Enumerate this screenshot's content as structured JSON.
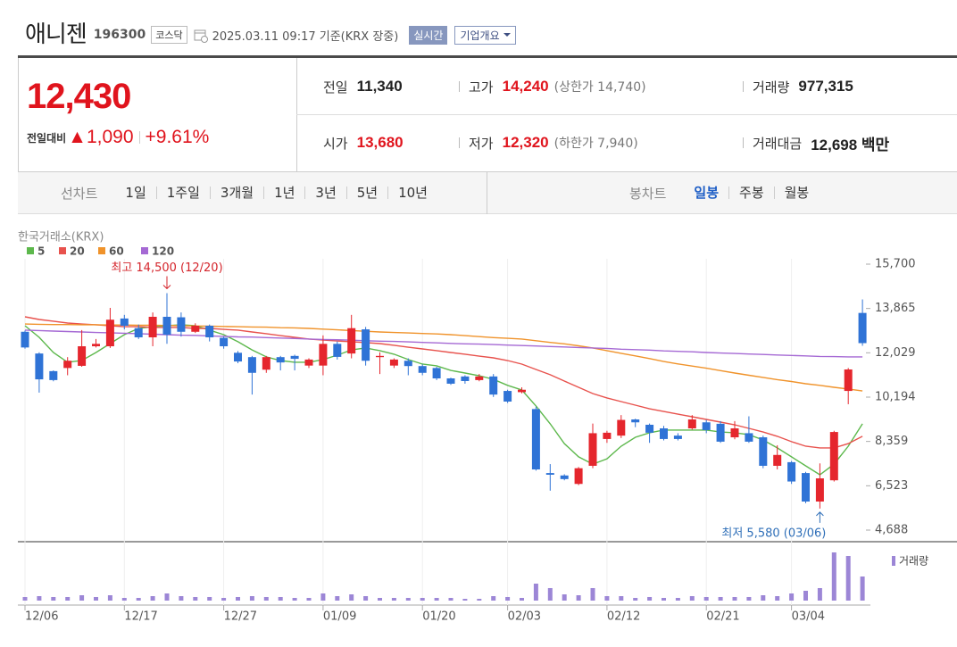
{
  "header": {
    "name": "애니젠",
    "code": "196300",
    "market": "코스닥",
    "timestamp": "2025.03.11 09:17 기준(KRX 장중)",
    "realtime": "실시간",
    "company_info": "기업개요"
  },
  "quote": {
    "price": "12,430",
    "change_label": "전일대비",
    "change": "▲1,090",
    "change_rate": "+9.61%",
    "stats": [
      {
        "label": "전일",
        "value": "11,340"
      },
      {
        "label": "고가",
        "value": "14,240",
        "note": "(상한가 14,740)"
      },
      {
        "label": "거래량",
        "value": "977,315"
      },
      {
        "label": "시가",
        "value": "13,680"
      },
      {
        "label": "저가",
        "value": "12,320",
        "note": "(하한가 7,940)"
      },
      {
        "label": "거래대금",
        "value": "12,698 백만"
      }
    ]
  },
  "periods": {
    "line_label": "선차트",
    "line_items": [
      "1일",
      "1주일",
      "3개월",
      "1년",
      "3년",
      "5년",
      "10년"
    ],
    "candle_label": "봉차트",
    "candle_items": [
      "일봉",
      "주봉",
      "월봉"
    ]
  },
  "chart_data": {
    "type": "candlestick",
    "source": "한국거래소(KRX)",
    "categories": [
      "12/06",
      null,
      null,
      null,
      null,
      null,
      null,
      "12/17",
      null,
      null,
      null,
      null,
      null,
      null,
      "12/27",
      null,
      null,
      null,
      null,
      null,
      null,
      "01/09",
      null,
      null,
      null,
      null,
      null,
      null,
      "01/20",
      null,
      null,
      null,
      null,
      null,
      "02/03",
      null,
      null,
      null,
      null,
      null,
      null,
      "02/12",
      null,
      null,
      null,
      null,
      null,
      null,
      "02/21",
      null,
      null,
      null,
      null,
      null,
      "03/04",
      null,
      null,
      null,
      null,
      null
    ],
    "open": [
      12900,
      12000,
      11270,
      11400,
      11490,
      12300,
      12300,
      13450,
      13050,
      12670,
      13520,
      13500,
      12900,
      13150,
      12650,
      12030,
      11850,
      11330,
      11850,
      11900,
      11500,
      11500,
      12400,
      12000,
      13000,
      11850,
      11500,
      11700,
      11480,
      11400,
      10970,
      11050,
      10900,
      11050,
      10450,
      10400,
      9700,
      7050,
      6950,
      6600,
      7350,
      8460,
      8600,
      9270,
      9050,
      8900,
      8600,
      8900,
      9150,
      9090,
      8530,
      8700,
      8530,
      7350,
      7500,
      7050,
      5870,
      6750,
      10450,
      13680
    ],
    "high": [
      12950,
      12050,
      11300,
      11850,
      12970,
      12600,
      13890,
      13600,
      13200,
      13700,
      14500,
      13700,
      13250,
      13200,
      12700,
      12100,
      11900,
      11900,
      11900,
      11950,
      11800,
      12750,
      12500,
      13600,
      13100,
      12050,
      11800,
      11800,
      11550,
      11450,
      11000,
      11100,
      11150,
      11150,
      10500,
      10600,
      9800,
      7420,
      7000,
      7300,
      9100,
      8800,
      9450,
      9300,
      9100,
      9000,
      8700,
      9450,
      9250,
      9200,
      9200,
      9400,
      8600,
      8200,
      7550,
      7100,
      7450,
      8800,
      11400,
      14240
    ],
    "low": [
      12200,
      10380,
      10850,
      11100,
      11450,
      12250,
      12230,
      13000,
      12600,
      12300,
      12400,
      12700,
      12850,
      12500,
      12200,
      11600,
      10300,
      11200,
      11300,
      11300,
      11400,
      11100,
      11750,
      11800,
      11500,
      11150,
      11400,
      11100,
      11100,
      10900,
      10700,
      10750,
      10850,
      10200,
      9950,
      10350,
      7150,
      6320,
      6750,
      6550,
      7250,
      8300,
      8500,
      8950,
      8300,
      8400,
      8400,
      8850,
      8700,
      8300,
      8450,
      8300,
      7250,
      7200,
      6600,
      5800,
      5580,
      6700,
      9900,
      12320
    ],
    "close": [
      12250,
      10930,
      10900,
      11700,
      12300,
      12400,
      13400,
      13150,
      12670,
      13520,
      12780,
      12900,
      13150,
      12670,
      12300,
      11670,
      11200,
      11850,
      11630,
      11780,
      11750,
      12400,
      11860,
      13050,
      11700,
      11900,
      11750,
      11480,
      11200,
      10970,
      10750,
      10860,
      11050,
      10300,
      10010,
      10500,
      7200,
      6980,
      6800,
      7250,
      8700,
      8720,
      9250,
      9150,
      8720,
      8460,
      8460,
      9270,
      8830,
      8350,
      8900,
      8350,
      7350,
      7800,
      6700,
      5870,
      6830,
      8750,
      11340,
      12430
    ],
    "up_color": "#e5262d",
    "down_color": "#2f73d6",
    "series": [
      {
        "name": "5",
        "color": "#5db84c",
        "values": [
          13150,
          12670,
          12040,
          11640,
          11710,
          12040,
          12410,
          12780,
          13040,
          13110,
          13150,
          13190,
          13150,
          12970,
          12780,
          12490,
          12150,
          11860,
          11710,
          11640,
          11640,
          11750,
          11930,
          12150,
          12230,
          12120,
          11970,
          11750,
          11560,
          11490,
          11300,
          11190,
          11080,
          10930,
          10680,
          10490,
          9830,
          9090,
          8270,
          7720,
          7420,
          7640,
          8160,
          8530,
          8720,
          8830,
          8830,
          8830,
          8830,
          8750,
          8720,
          8640,
          8420,
          8090,
          7720,
          7350,
          6980,
          7420,
          8160,
          9090
        ]
      },
      {
        "name": "20",
        "color": "#e8524d",
        "values": [
          13520,
          13410,
          13340,
          13260,
          13220,
          13190,
          13150,
          13110,
          13110,
          13080,
          13080,
          13080,
          13040,
          13040,
          13000,
          12970,
          12890,
          12820,
          12740,
          12670,
          12600,
          12560,
          12520,
          12490,
          12450,
          12410,
          12340,
          12260,
          12190,
          12120,
          12040,
          11970,
          11890,
          11820,
          11710,
          11560,
          11340,
          11120,
          10860,
          10600,
          10340,
          10160,
          10010,
          9860,
          9710,
          9600,
          9490,
          9380,
          9270,
          9160,
          9050,
          8900,
          8750,
          8570,
          8350,
          8160,
          8090,
          8090,
          8270,
          8570
        ]
      },
      {
        "name": "60",
        "color": "#f0932b",
        "values": [
          13220,
          13210,
          13200,
          13200,
          13190,
          13190,
          13180,
          13180,
          13170,
          13170,
          13160,
          13150,
          13140,
          13130,
          13120,
          13110,
          13100,
          13090,
          13070,
          13060,
          13040,
          13010,
          12980,
          12950,
          12920,
          12890,
          12870,
          12850,
          12830,
          12810,
          12780,
          12740,
          12700,
          12660,
          12630,
          12600,
          12530,
          12460,
          12400,
          12320,
          12230,
          12120,
          12010,
          11900,
          11790,
          11670,
          11570,
          11480,
          11390,
          11290,
          11190,
          11100,
          11010,
          10920,
          10840,
          10750,
          10680,
          10600,
          10530,
          10450
        ]
      },
      {
        "name": "120",
        "color": "#a569d4",
        "values": [
          12970,
          12950,
          12930,
          12910,
          12890,
          12870,
          12860,
          12840,
          12820,
          12800,
          12780,
          12760,
          12750,
          12730,
          12710,
          12690,
          12680,
          12660,
          12640,
          12620,
          12600,
          12580,
          12570,
          12550,
          12530,
          12510,
          12500,
          12480,
          12460,
          12440,
          12420,
          12400,
          12390,
          12370,
          12350,
          12330,
          12310,
          12290,
          12270,
          12250,
          12230,
          12210,
          12180,
          12160,
          12140,
          12110,
          12090,
          12070,
          12040,
          12020,
          12000,
          11980,
          11960,
          11940,
          11920,
          11900,
          11880,
          11870,
          11860,
          11860
        ]
      }
    ],
    "volume": {
      "name": "거래량",
      "color": "#9c86d6",
      "values": [
        145000,
        181000,
        145000,
        145000,
        217000,
        145000,
        217000,
        109000,
        109000,
        181000,
        290000,
        181000,
        145000,
        145000,
        109000,
        145000,
        181000,
        145000,
        145000,
        109000,
        109000,
        290000,
        181000,
        253000,
        181000,
        109000,
        109000,
        109000,
        109000,
        109000,
        109000,
        72000,
        72000,
        181000,
        145000,
        109000,
        688000,
        507000,
        253000,
        217000,
        507000,
        181000,
        181000,
        109000,
        145000,
        109000,
        109000,
        181000,
        145000,
        145000,
        145000,
        145000,
        217000,
        181000,
        290000,
        398000,
        507000,
        1955000,
        1810000,
        977315
      ]
    },
    "ylim": [
      4688,
      15700
    ],
    "yticks": [
      {
        "value": 15700,
        "label": "15,700"
      },
      {
        "value": 13865,
        "label": "13,865"
      },
      {
        "value": 12029,
        "label": "12,029"
      },
      {
        "value": 10194,
        "label": "10,194"
      },
      {
        "value": 8359,
        "label": "8,359"
      },
      {
        "value": 6523,
        "label": "6,523"
      },
      {
        "value": 4688,
        "label": "4,688"
      }
    ],
    "annotations": [
      {
        "text": "최고 14,500 (12/20)",
        "color": "#d4242b"
      },
      {
        "text": "최저 5,580 (03/06)",
        "color": "#2f6fb8"
      }
    ]
  }
}
